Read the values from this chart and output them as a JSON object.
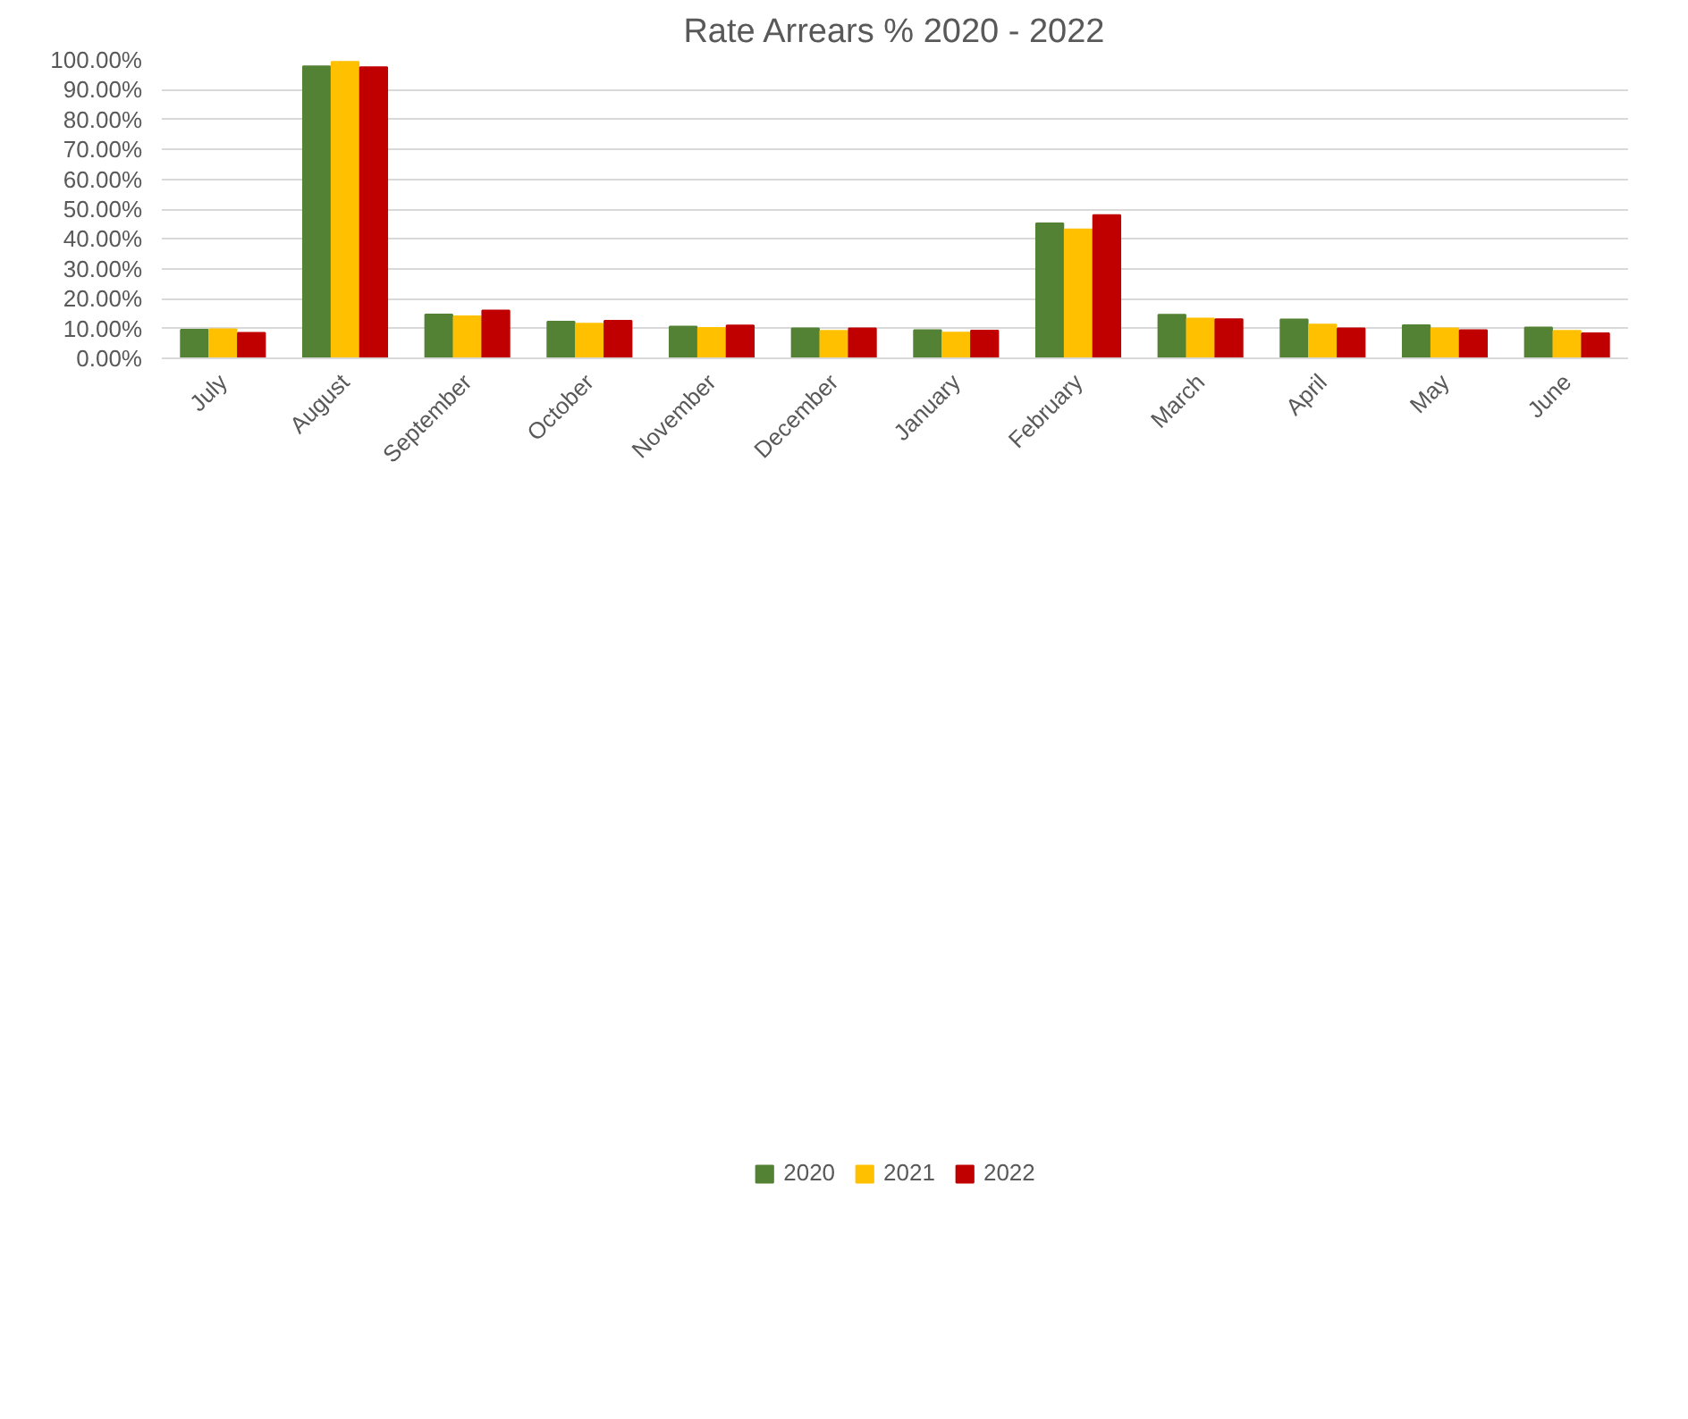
{
  "chart_data": {
    "type": "bar",
    "title": "Rate Arrears % 2020 - 2022",
    "categories": [
      "July",
      "August",
      "September",
      "October",
      "November",
      "December",
      "January",
      "February",
      "March",
      "April",
      "May",
      "June"
    ],
    "series": [
      {
        "name": "2020",
        "color": "#548235",
        "values": [
          9.6,
          97.8,
          14.7,
          12.3,
          10.6,
          10.0,
          9.4,
          45.2,
          14.6,
          13.0,
          11.1,
          10.3
        ]
      },
      {
        "name": "2021",
        "color": "#ffc000",
        "values": [
          9.7,
          99.3,
          14.1,
          11.6,
          10.2,
          9.2,
          8.6,
          43.2,
          13.3,
          11.3,
          10.0,
          9.2
        ]
      },
      {
        "name": "2022",
        "color": "#c00000",
        "values": [
          8.5,
          97.5,
          16.0,
          12.6,
          11.0,
          10.0,
          9.3,
          48.0,
          13.1,
          10.0,
          9.4,
          8.4
        ]
      }
    ],
    "ylim": [
      0,
      100
    ],
    "yticks": [
      {
        "value": 0,
        "label": "0.00%"
      },
      {
        "value": 10,
        "label": "10.00%"
      },
      {
        "value": 20,
        "label": "20.00%"
      },
      {
        "value": 30,
        "label": "30.00%"
      },
      {
        "value": 40,
        "label": "40.00%"
      },
      {
        "value": 50,
        "label": "50.00%"
      },
      {
        "value": 60,
        "label": "60.00%"
      },
      {
        "value": 70,
        "label": "70.00%"
      },
      {
        "value": 80,
        "label": "80.00%"
      },
      {
        "value": 90,
        "label": "90.00%"
      },
      {
        "value": 100,
        "label": "100.00%"
      }
    ],
    "grid": "y",
    "legend": "bottom"
  }
}
